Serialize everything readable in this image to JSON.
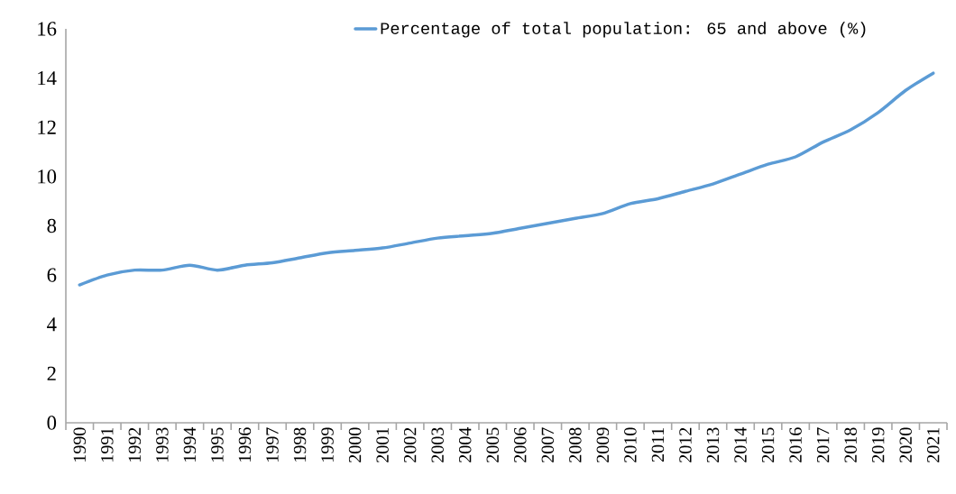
{
  "chart_data": {
    "type": "line",
    "categories": [
      "1990",
      "1991",
      "1992",
      "1993",
      "1994",
      "1995",
      "1996",
      "1997",
      "1998",
      "1999",
      "2000",
      "2001",
      "2002",
      "2003",
      "2004",
      "2005",
      "2006",
      "2007",
      "2008",
      "2009",
      "2010",
      "2011",
      "2012",
      "2013",
      "2014",
      "2015",
      "2016",
      "2017",
      "2018",
      "2019",
      "2020",
      "2021"
    ],
    "series": [
      {
        "name": "Percentage of total population: 65 and above (%)",
        "color": "#5b9bd5",
        "values": [
          5.6,
          6.0,
          6.2,
          6.2,
          6.4,
          6.2,
          6.4,
          6.5,
          6.7,
          6.9,
          7.0,
          7.1,
          7.3,
          7.5,
          7.6,
          7.7,
          7.9,
          8.1,
          8.3,
          8.5,
          8.9,
          9.1,
          9.4,
          9.7,
          10.1,
          10.5,
          10.8,
          11.4,
          11.9,
          12.6,
          13.5,
          14.2
        ]
      }
    ],
    "ylim": [
      0,
      16
    ],
    "yticks": [
      0,
      2,
      4,
      6,
      8,
      10,
      12,
      14,
      16
    ],
    "legend": "top",
    "grid": false,
    "marker": "none",
    "line_style": "solid"
  }
}
